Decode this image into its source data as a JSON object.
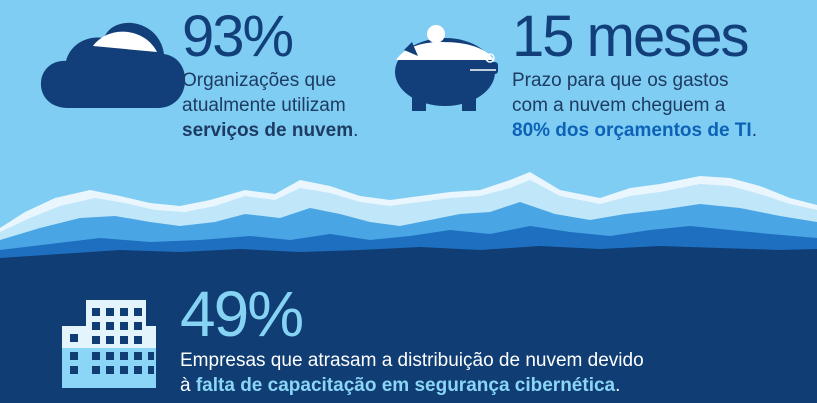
{
  "palette": {
    "sky": "#7fcdf2",
    "navy": "#123f7a",
    "deep_navy": "#0f3d74",
    "blue": "#1a62ae",
    "light_blue": "#8bd6f6",
    "white": "#ffffff"
  },
  "icons": [
    "cloud-icon",
    "piggy-bank-icon",
    "building-icon",
    "mountains-illustration"
  ],
  "stats": [
    {
      "value": "93%",
      "line1": "Organizações que",
      "line2": "atualmente utilizam",
      "bold": "serviços de nuvem",
      "end": "."
    },
    {
      "value": "15 meses",
      "line1": "Prazo para que os gastos",
      "line2": "com a nuvem cheguem a",
      "bold": "80% dos orçamentos de TI",
      "end": "."
    },
    {
      "value": "49%",
      "line1": "Empresas que atrasam a distribuição de nuvem devido",
      "prefix": "à",
      "bold": "falta de capacitação em segurança cibernética",
      "end": "."
    }
  ]
}
